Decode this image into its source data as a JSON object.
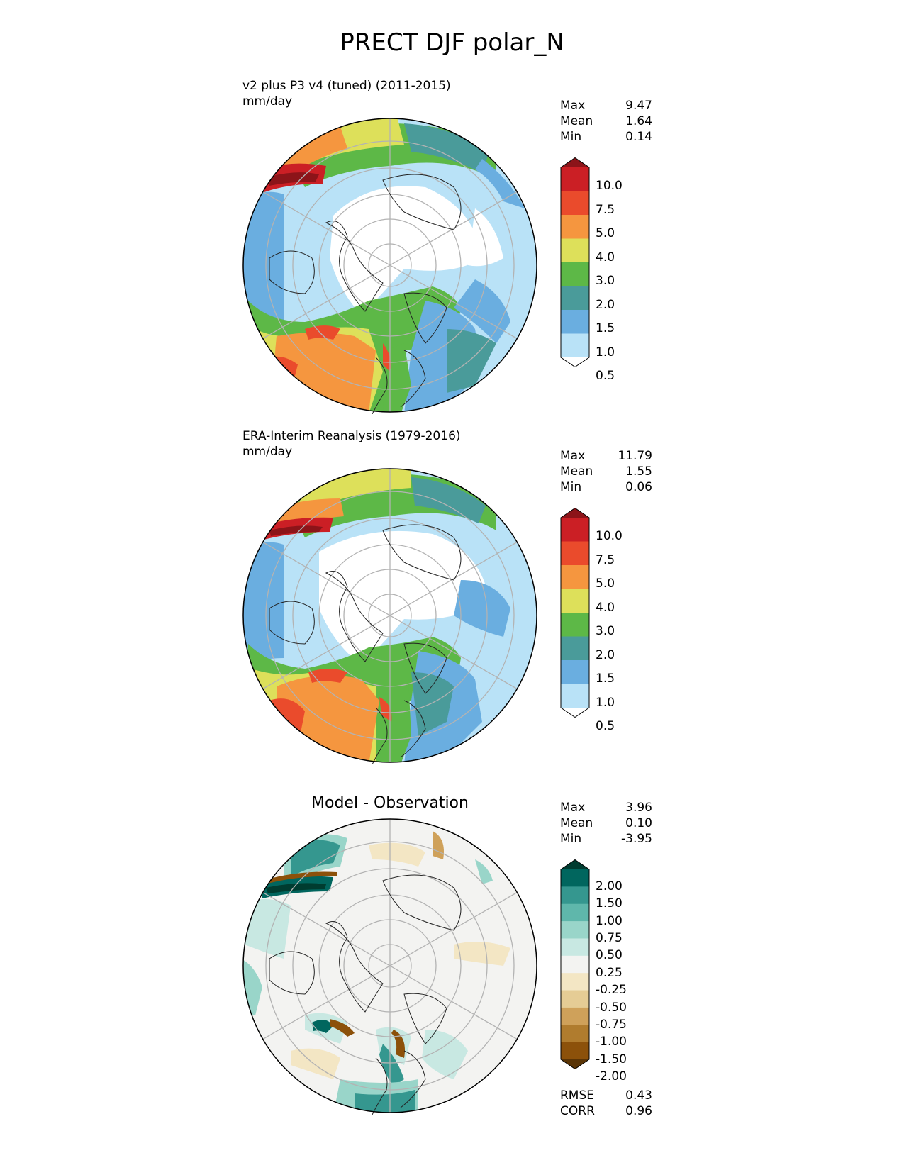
{
  "title": "PRECT DJF polar_N",
  "panels": [
    {
      "title_line1": "v2 plus P3 v4 (tuned) (2011-2015)",
      "title_line2": "mm/day",
      "stats": [
        {
          "label": "Max",
          "value": "9.47"
        },
        {
          "label": "Mean",
          "value": "1.64"
        },
        {
          "label": "Min",
          "value": "0.14"
        }
      ]
    },
    {
      "title_line1": "ERA-Interim Reanalysis (1979-2016)",
      "title_line2": "mm/day",
      "stats": [
        {
          "label": "Max",
          "value": "11.79"
        },
        {
          "label": "Mean",
          "value": "1.55"
        },
        {
          "label": "Min",
          "value": "0.06"
        }
      ]
    },
    {
      "title_line1": "Model - Observation",
      "stats": [
        {
          "label": "Max",
          "value": "3.96"
        },
        {
          "label": "Mean",
          "value": "0.10"
        },
        {
          "label": "Min",
          "value": "-3.95"
        }
      ],
      "footer_stats": [
        {
          "label": "RMSE",
          "value": "0.43"
        },
        {
          "label": "CORR",
          "value": "0.96"
        }
      ]
    }
  ],
  "colorbar_precip": {
    "levels": [
      "10.0",
      "7.5",
      "5.0",
      "4.0",
      "3.0",
      "2.0",
      "1.5",
      "1.0",
      "0.5"
    ],
    "colors": [
      "#8c1419",
      "#cb1f25",
      "#ea4b2c",
      "#f5963f",
      "#dde05a",
      "#5db847",
      "#4a9b9a",
      "#6aaee0",
      "#b9e2f7",
      "#ffffff"
    ]
  },
  "colorbar_diff": {
    "levels": [
      "2.00",
      "1.50",
      "1.00",
      "0.75",
      "0.50",
      "0.25",
      "-0.25",
      "-0.50",
      "-0.75",
      "-1.00",
      "-1.50",
      "-2.00"
    ],
    "colors": [
      "#003c30",
      "#01665e",
      "#35978f",
      "#5fb7ab",
      "#99d5c9",
      "#c8e8e2",
      "#f3f3f1",
      "#f3e6c4",
      "#e5cc95",
      "#cfa15a",
      "#b07c2e",
      "#8c510a",
      "#5a3405"
    ]
  }
}
